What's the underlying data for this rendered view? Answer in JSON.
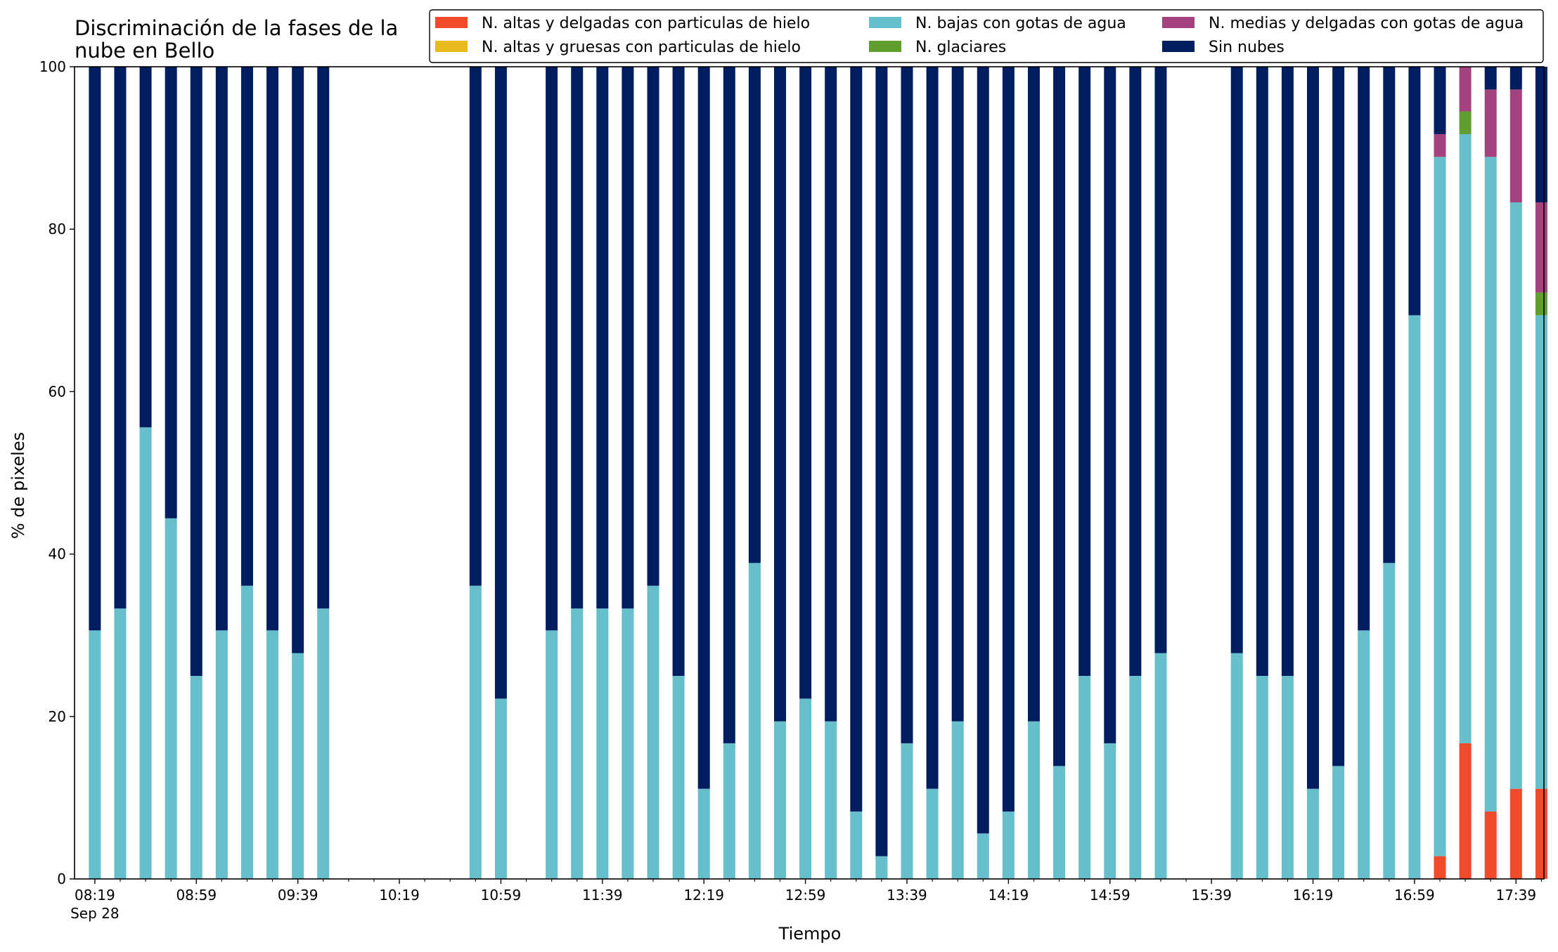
{
  "chart_data": {
    "type": "bar",
    "stacked": true,
    "title": "Discriminación de la fases de la nube en Bello",
    "title_lines": [
      "Discriminación de la fases de la",
      "nube en Bello"
    ],
    "xlabel": "Tiempo",
    "ylabel": "% de pixeles",
    "ylim": [
      0,
      100
    ],
    "yticks": [
      0,
      20,
      40,
      60,
      80,
      100
    ],
    "xlim_minutes": [
      491,
      1070
    ],
    "x_tick_labels": [
      {
        "minute": 499,
        "label": "08:19",
        "sublabel": "Sep 28"
      },
      {
        "minute": 539,
        "label": "08:59"
      },
      {
        "minute": 579,
        "label": "09:39"
      },
      {
        "minute": 619,
        "label": "10:19"
      },
      {
        "minute": 659,
        "label": "10:59"
      },
      {
        "minute": 699,
        "label": "11:39"
      },
      {
        "minute": 739,
        "label": "12:19"
      },
      {
        "minute": 779,
        "label": "12:59"
      },
      {
        "minute": 819,
        "label": "13:39"
      },
      {
        "minute": 859,
        "label": "14:19"
      },
      {
        "minute": 899,
        "label": "14:59"
      },
      {
        "minute": 939,
        "label": "15:39"
      },
      {
        "minute": 979,
        "label": "16:19"
      },
      {
        "minute": 1019,
        "label": "16:59"
      },
      {
        "minute": 1059,
        "label": "17:39"
      }
    ],
    "x_minor_tick_step": 10,
    "legend_position": "upper-right",
    "grid": false,
    "series": [
      {
        "name": "N. altas y delgadas con particulas de hielo",
        "color": "#EF4A2B"
      },
      {
        "name": "N. altas y gruesas con particulas de hielo",
        "color": "#E8BA1E"
      },
      {
        "name": "N. bajas con gotas de agua",
        "color": "#66BFCB"
      },
      {
        "name": "N. glaciares",
        "color": "#5F9E2F"
      },
      {
        "name": "N. medias y delgadas con gotas de agua",
        "color": "#A3427C"
      },
      {
        "name": "Sin nubes",
        "color": "#001E5F"
      }
    ],
    "x": [
      "08:19",
      "08:29",
      "08:39",
      "08:49",
      "08:59",
      "09:09",
      "09:19",
      "09:29",
      "09:39",
      "09:49",
      "10:49",
      "10:59",
      "11:19",
      "11:29",
      "11:39",
      "11:49",
      "11:59",
      "12:09",
      "12:19",
      "12:29",
      "12:39",
      "12:49",
      "12:59",
      "13:09",
      "13:19",
      "13:29",
      "13:39",
      "13:49",
      "13:59",
      "14:09",
      "14:19",
      "14:29",
      "14:39",
      "14:49",
      "14:59",
      "15:09",
      "15:19",
      "15:49",
      "15:59",
      "16:09",
      "16:19",
      "16:29",
      "16:39",
      "16:49",
      "16:59",
      "17:09",
      "17:19",
      "17:29",
      "17:39",
      "17:49"
    ],
    "x_minutes": [
      499,
      509,
      519,
      529,
      539,
      549,
      559,
      569,
      579,
      589,
      649,
      659,
      679,
      689,
      699,
      709,
      719,
      729,
      739,
      749,
      759,
      769,
      779,
      789,
      799,
      809,
      819,
      829,
      839,
      849,
      859,
      869,
      879,
      889,
      899,
      909,
      919,
      949,
      959,
      969,
      979,
      989,
      999,
      1009,
      1019,
      1029,
      1039,
      1049,
      1059,
      1069
    ],
    "stacks": [
      [
        0,
        0,
        30.6,
        0,
        0,
        69.4
      ],
      [
        0,
        0,
        33.3,
        0,
        0,
        66.7
      ],
      [
        0,
        0,
        55.6,
        0,
        0,
        44.4
      ],
      [
        0,
        0,
        44.4,
        0,
        0,
        55.6
      ],
      [
        0,
        0,
        25.0,
        0,
        0,
        75.0
      ],
      [
        0,
        0,
        30.6,
        0,
        0,
        69.4
      ],
      [
        0,
        0,
        36.1,
        0,
        0,
        63.9
      ],
      [
        0,
        0,
        30.6,
        0,
        0,
        69.4
      ],
      [
        0,
        0,
        27.8,
        0,
        0,
        72.2
      ],
      [
        0,
        0,
        33.3,
        0,
        0,
        66.7
      ],
      [
        0,
        0,
        36.1,
        0,
        0,
        63.9
      ],
      [
        0,
        0,
        22.2,
        0,
        0,
        77.8
      ],
      [
        0,
        0,
        30.6,
        0,
        0,
        69.4
      ],
      [
        0,
        0,
        33.3,
        0,
        0,
        66.7
      ],
      [
        0,
        0,
        33.3,
        0,
        0,
        66.7
      ],
      [
        0,
        0,
        33.3,
        0,
        0,
        66.7
      ],
      [
        0,
        0,
        36.1,
        0,
        0,
        63.9
      ],
      [
        0,
        0,
        25.0,
        0,
        0,
        75.0
      ],
      [
        0,
        0,
        11.1,
        0,
        0,
        88.9
      ],
      [
        0,
        0,
        16.7,
        0,
        0,
        83.3
      ],
      [
        0,
        0,
        38.9,
        0,
        0,
        61.1
      ],
      [
        0,
        0,
        19.4,
        0,
        0,
        80.6
      ],
      [
        0,
        0,
        22.2,
        0,
        0,
        77.8
      ],
      [
        0,
        0,
        19.4,
        0,
        0,
        80.6
      ],
      [
        0,
        0,
        8.3,
        0,
        0,
        91.7
      ],
      [
        0,
        0,
        2.8,
        0,
        0,
        97.2
      ],
      [
        0,
        0,
        16.7,
        0,
        0,
        83.3
      ],
      [
        0,
        0,
        11.1,
        0,
        0,
        88.9
      ],
      [
        0,
        0,
        19.4,
        0,
        0,
        80.6
      ],
      [
        0,
        0,
        5.6,
        0,
        0,
        94.4
      ],
      [
        0,
        0,
        8.3,
        0,
        0,
        91.7
      ],
      [
        0,
        0,
        19.4,
        0,
        0,
        80.6
      ],
      [
        0,
        0,
        13.9,
        0,
        0,
        86.1
      ],
      [
        0,
        0,
        25.0,
        0,
        0,
        75.0
      ],
      [
        0,
        0,
        16.7,
        0,
        0,
        83.3
      ],
      [
        0,
        0,
        25.0,
        0,
        0,
        75.0
      ],
      [
        0,
        0,
        27.8,
        0,
        0,
        72.2
      ],
      [
        0,
        0,
        27.8,
        0,
        0,
        72.2
      ],
      [
        0,
        0,
        25.0,
        0,
        0,
        75.0
      ],
      [
        0,
        0,
        25.0,
        0,
        0,
        75.0
      ],
      [
        0,
        0,
        11.1,
        0,
        0,
        88.9
      ],
      [
        0,
        0,
        13.9,
        0,
        0,
        86.1
      ],
      [
        0,
        0,
        30.6,
        0,
        0,
        69.4
      ],
      [
        0,
        0,
        38.9,
        0,
        0,
        61.1
      ],
      [
        0,
        0,
        69.4,
        0,
        0,
        30.6
      ],
      [
        2.8,
        0,
        86.1,
        0,
        2.8,
        8.3
      ],
      [
        16.7,
        0,
        75.0,
        2.8,
        5.5,
        0
      ],
      [
        8.3,
        0,
        80.6,
        0,
        8.3,
        2.8
      ],
      [
        11.1,
        0,
        72.2,
        0,
        13.9,
        2.8
      ],
      [
        11.1,
        0,
        58.3,
        2.8,
        11.1,
        16.7
      ]
    ]
  }
}
